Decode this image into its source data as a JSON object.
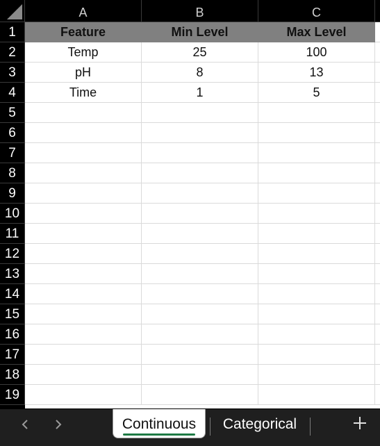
{
  "columns": [
    "A",
    "B",
    "C"
  ],
  "rows": [
    "1",
    "2",
    "3",
    "4",
    "5",
    "6",
    "7",
    "8",
    "9",
    "10",
    "11",
    "12",
    "13",
    "14",
    "15",
    "16",
    "17",
    "18",
    "19"
  ],
  "table": {
    "headers": [
      "Feature",
      "Min Level",
      "Max Level"
    ],
    "data": [
      [
        "Temp",
        "25",
        "100"
      ],
      [
        "pH",
        "8",
        "13"
      ],
      [
        "Time",
        "1",
        "5"
      ]
    ]
  },
  "sheets": {
    "active": "Continuous",
    "other": "Categorical",
    "add_label": "+"
  },
  "colors": {
    "header_fill": "#808080",
    "active_tab_underline": "#1e7a45",
    "background": "#000000"
  }
}
